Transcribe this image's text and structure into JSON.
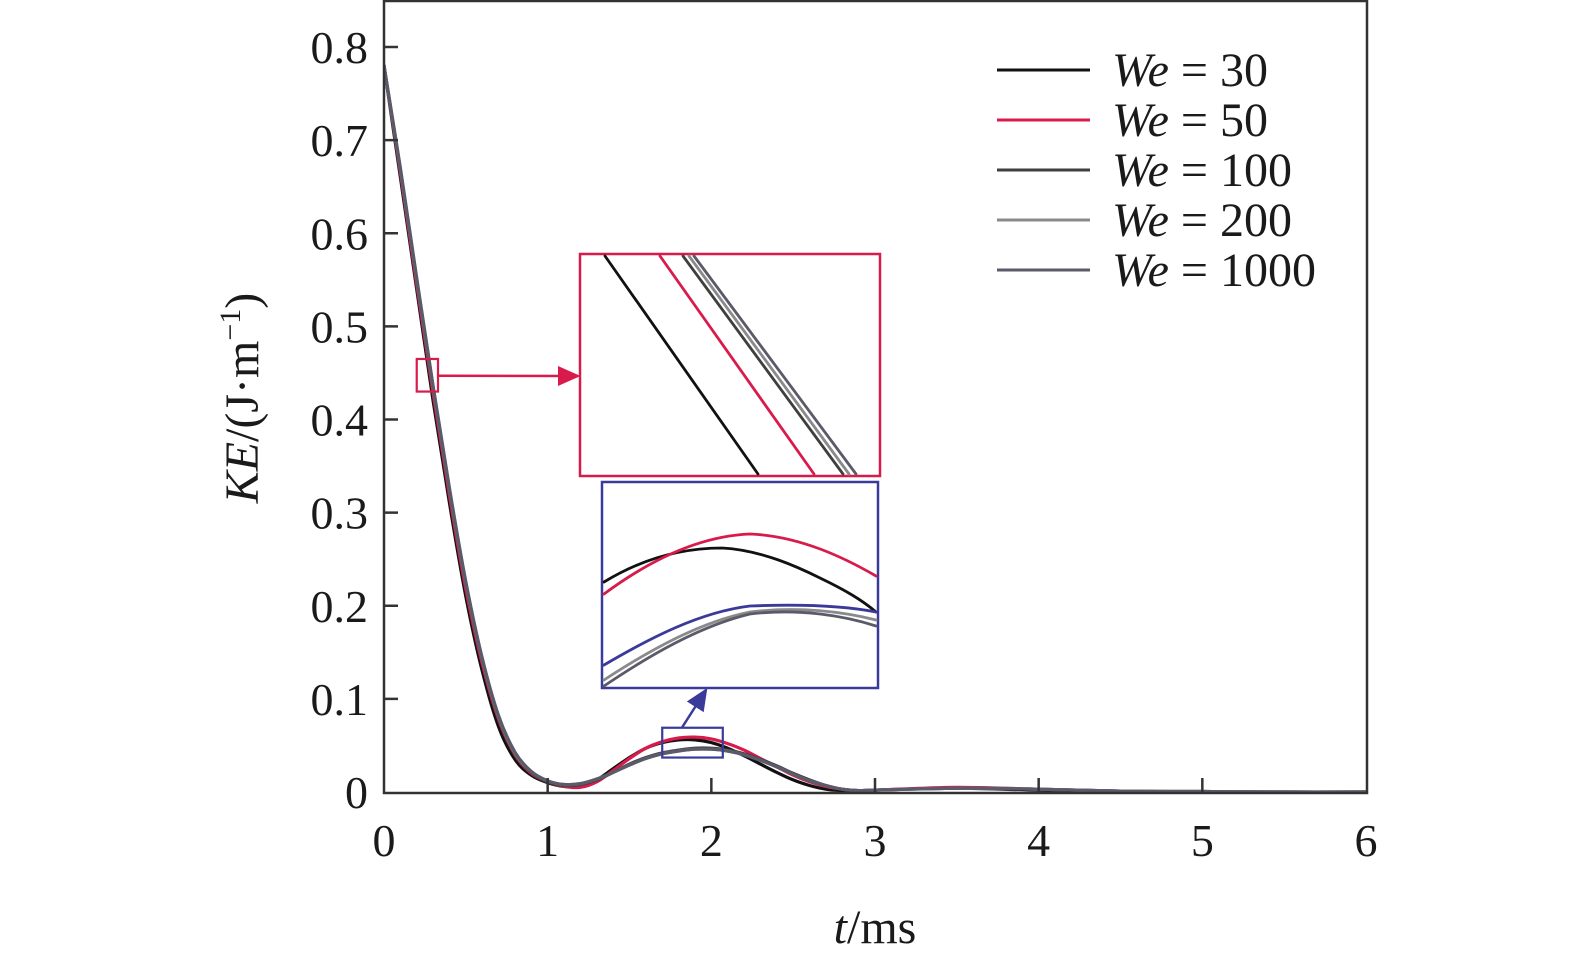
{
  "chart_data": {
    "type": "line",
    "title": "",
    "xlabel_italic": "t",
    "xlabel_rest": "/ms",
    "ylabel_italic": "KE",
    "ylabel_rest": "/(J·m",
    "ylabel_sup": "−1",
    "ylabel_close": ")",
    "xlim": [
      0,
      6
    ],
    "ylim": [
      0,
      0.8
    ],
    "xticks": [
      "0",
      "1",
      "2",
      "3",
      "4",
      "5",
      "6"
    ],
    "yticks": [
      "0",
      "0.1",
      "0.2",
      "0.3",
      "0.4",
      "0.5",
      "0.6",
      "0.7",
      "0.8"
    ],
    "legend_position": "top-right",
    "grid": false,
    "x": [
      0,
      0.1,
      0.2,
      0.3,
      0.4,
      0.5,
      0.6,
      0.7,
      0.8,
      0.9,
      1.0,
      1.1,
      1.2,
      1.3,
      1.4,
      1.5,
      1.6,
      1.7,
      1.8,
      1.9,
      2.0,
      2.1,
      2.2,
      2.3,
      2.4,
      2.5,
      2.6,
      2.7,
      2.8,
      2.9,
      3.0,
      3.5,
      4.0,
      4.5,
      5.0,
      5.5,
      6.0
    ],
    "series": [
      {
        "name_italic": "We",
        "name_rest": " = 30",
        "color": "#111111",
        "values": [
          0.78,
          0.66,
          0.54,
          0.42,
          0.31,
          0.21,
          0.13,
          0.07,
          0.035,
          0.018,
          0.01,
          0.006,
          0.006,
          0.013,
          0.025,
          0.037,
          0.047,
          0.053,
          0.056,
          0.056,
          0.053,
          0.047,
          0.039,
          0.03,
          0.021,
          0.013,
          0.007,
          0.003,
          0.0015,
          0.001,
          0.002,
          0.004,
          0.002,
          0.001,
          0.0,
          0.0,
          0.0
        ]
      },
      {
        "name_italic": "We",
        "name_rest": " = 50",
        "color": "#d81b4a",
        "values": [
          0.78,
          0.665,
          0.545,
          0.428,
          0.318,
          0.218,
          0.138,
          0.078,
          0.04,
          0.02,
          0.011,
          0.006,
          0.005,
          0.011,
          0.023,
          0.036,
          0.047,
          0.054,
          0.058,
          0.059,
          0.057,
          0.052,
          0.045,
          0.036,
          0.027,
          0.018,
          0.011,
          0.006,
          0.003,
          0.0015,
          0.002,
          0.005,
          0.003,
          0.001,
          0.0005,
          0.0,
          0.0
        ]
      },
      {
        "name_italic": "We",
        "name_rest": " = 100",
        "color": "#3f3f3f",
        "values": [
          0.78,
          0.668,
          0.55,
          0.434,
          0.324,
          0.224,
          0.142,
          0.08,
          0.041,
          0.021,
          0.011,
          0.007,
          0.008,
          0.013,
          0.021,
          0.03,
          0.037,
          0.042,
          0.045,
          0.047,
          0.047,
          0.045,
          0.041,
          0.035,
          0.028,
          0.02,
          0.013,
          0.007,
          0.003,
          0.0015,
          0.002,
          0.004,
          0.003,
          0.001,
          0.0005,
          0.0,
          0.0
        ]
      },
      {
        "name_italic": "We",
        "name_rest": " = 200",
        "color": "#8a8a8a",
        "values": [
          0.78,
          0.669,
          0.551,
          0.435,
          0.325,
          0.225,
          0.143,
          0.081,
          0.042,
          0.022,
          0.012,
          0.008,
          0.009,
          0.014,
          0.021,
          0.029,
          0.036,
          0.041,
          0.044,
          0.046,
          0.046,
          0.044,
          0.04,
          0.034,
          0.027,
          0.019,
          0.012,
          0.007,
          0.003,
          0.0015,
          0.002,
          0.004,
          0.003,
          0.001,
          0.0005,
          0.0,
          0.0
        ]
      },
      {
        "name_italic": "We",
        "name_rest": " = 1000",
        "color": "#5a5a6a",
        "values": [
          0.78,
          0.67,
          0.552,
          0.436,
          0.326,
          0.226,
          0.144,
          0.082,
          0.043,
          0.022,
          0.012,
          0.008,
          0.009,
          0.014,
          0.021,
          0.029,
          0.036,
          0.041,
          0.044,
          0.046,
          0.046,
          0.044,
          0.04,
          0.034,
          0.027,
          0.019,
          0.012,
          0.007,
          0.003,
          0.0015,
          0.002,
          0.004,
          0.003,
          0.001,
          0.0005,
          0.0,
          0.0
        ]
      }
    ],
    "zoom_boxes": [
      {
        "name": "zoom-box-early",
        "xrange": [
          0.2,
          0.33
        ],
        "yrange": [
          0.43,
          0.465
        ],
        "color": "#d81b4a"
      },
      {
        "name": "zoom-box-peak",
        "xrange": [
          1.7,
          2.07
        ],
        "yrange": [
          0.037,
          0.069
        ],
        "color": "#3a3a9a"
      }
    ]
  }
}
